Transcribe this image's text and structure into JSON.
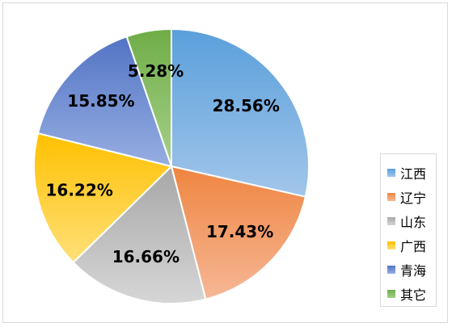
{
  "chart_data": {
    "type": "pie",
    "title": "",
    "categories": [
      "江西",
      "辽宁",
      "山东",
      "广西",
      "青海",
      "其它"
    ],
    "values": [
      28.56,
      17.43,
      16.66,
      16.22,
      15.85,
      5.28
    ],
    "labels": [
      "28.56%",
      "17.43%",
      "16.66%",
      "16.22%",
      "15.85%",
      "5.28%"
    ],
    "colors": [
      [
        "#5a9fdb",
        "#a2c6ea"
      ],
      [
        "#ef8540",
        "#f6b796"
      ],
      [
        "#a7a7a7",
        "#d6d6d6"
      ],
      [
        "#ffc000",
        "#ffe07a"
      ],
      [
        "#5274c4",
        "#97aee2"
      ],
      [
        "#6fad47",
        "#a6d08a"
      ]
    ],
    "start_angle_deg": 0,
    "direction": "clockwise",
    "legend_position": "right"
  }
}
